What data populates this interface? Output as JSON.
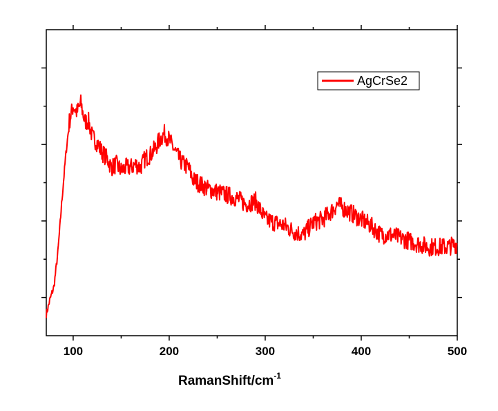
{
  "chart_data": {
    "type": "line",
    "title": "",
    "xlabel": "RamanShift/cm",
    "xlabel_superscript": "-1",
    "ylabel": "",
    "xlim": [
      72,
      500
    ],
    "ylim": [
      0,
      1
    ],
    "x_ticks": [
      100,
      200,
      300,
      400,
      500
    ],
    "y_tick_labels_shown": false,
    "grid": false,
    "legend": {
      "position": "top-right",
      "entries": [
        "AgCrSe2"
      ]
    },
    "series": [
      {
        "name": "AgCrSe2",
        "color": "#ff0000",
        "x": [
          72,
          76,
          80,
          84,
          88,
          92,
          96,
          100,
          104,
          108,
          112,
          116,
          120,
          125,
          130,
          135,
          140,
          145,
          150,
          155,
          160,
          165,
          170,
          175,
          180,
          185,
          190,
          195,
          200,
          205,
          210,
          215,
          220,
          225,
          230,
          240,
          250,
          260,
          270,
          280,
          290,
          300,
          310,
          320,
          330,
          340,
          350,
          360,
          370,
          375,
          380,
          390,
          400,
          410,
          420,
          430,
          440,
          450,
          460,
          470,
          480,
          490,
          500
        ],
        "y": [
          0.07,
          0.12,
          0.16,
          0.27,
          0.43,
          0.58,
          0.7,
          0.75,
          0.73,
          0.76,
          0.7,
          0.7,
          0.65,
          0.63,
          0.6,
          0.58,
          0.55,
          0.56,
          0.54,
          0.55,
          0.55,
          0.56,
          0.55,
          0.58,
          0.59,
          0.61,
          0.64,
          0.66,
          0.64,
          0.61,
          0.58,
          0.56,
          0.55,
          0.51,
          0.5,
          0.48,
          0.47,
          0.46,
          0.45,
          0.43,
          0.44,
          0.38,
          0.37,
          0.36,
          0.34,
          0.33,
          0.37,
          0.38,
          0.41,
          0.43,
          0.42,
          0.4,
          0.38,
          0.36,
          0.33,
          0.33,
          0.32,
          0.31,
          0.3,
          0.29,
          0.29,
          0.29,
          0.3
        ]
      }
    ]
  }
}
